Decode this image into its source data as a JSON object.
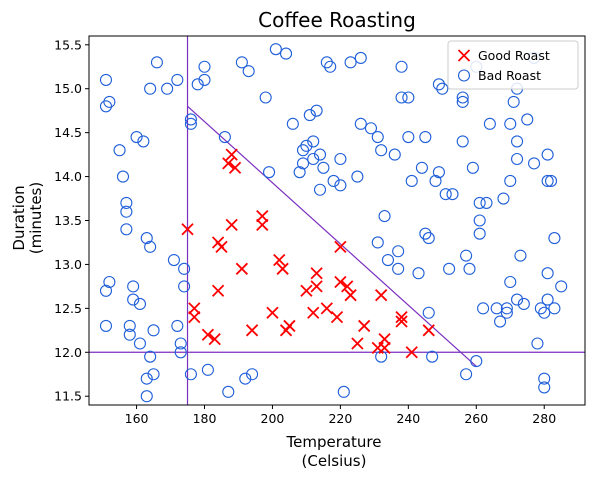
{
  "chart_data": {
    "type": "scatter",
    "title": "Coffee Roasting",
    "xlabel": [
      "Temperature",
      "(Celsius)"
    ],
    "ylabel": [
      "Duration",
      "(minutes)"
    ],
    "xlim": [
      146,
      292
    ],
    "ylim": [
      11.4,
      15.6
    ],
    "xticks": [
      160,
      180,
      200,
      220,
      240,
      260,
      280
    ],
    "yticks": [
      11.5,
      12.0,
      12.5,
      13.0,
      13.5,
      14.0,
      14.5,
      15.0,
      15.5
    ],
    "legend_position": "top-right",
    "grid": false,
    "colors": {
      "good": "#ff0000",
      "bad": "#1f5fd9",
      "lines": "#7b2fbf"
    },
    "decision_boundaries": [
      {
        "type": "vertical",
        "x": 175
      },
      {
        "type": "horizontal",
        "y": 12.0
      },
      {
        "type": "segment",
        "x1": 175,
        "y1": 14.8,
        "x2": 260,
        "y2": 11.84
      }
    ],
    "series": [
      {
        "name": "Good Roast",
        "marker": "x",
        "points": [
          [
            175,
            13.4
          ],
          [
            177,
            12.5
          ],
          [
            177,
            12.4
          ],
          [
            181,
            12.2
          ],
          [
            183,
            12.15
          ],
          [
            184,
            12.7
          ],
          [
            184,
            13.25
          ],
          [
            185,
            13.2
          ],
          [
            187,
            14.15
          ],
          [
            188,
            14.25
          ],
          [
            188,
            13.45
          ],
          [
            189,
            14.1
          ],
          [
            191,
            12.95
          ],
          [
            194,
            12.25
          ],
          [
            197,
            13.55
          ],
          [
            197,
            13.45
          ],
          [
            200,
            12.45
          ],
          [
            202,
            13.05
          ],
          [
            203,
            12.95
          ],
          [
            204,
            12.25
          ],
          [
            205,
            12.3
          ],
          [
            210,
            12.7
          ],
          [
            212,
            12.45
          ],
          [
            213,
            12.75
          ],
          [
            213,
            12.9
          ],
          [
            216,
            12.5
          ],
          [
            219,
            12.4
          ],
          [
            220,
            13.2
          ],
          [
            220,
            12.8
          ],
          [
            222,
            12.75
          ],
          [
            223,
            12.65
          ],
          [
            225,
            12.1
          ],
          [
            227,
            12.3
          ],
          [
            231,
            12.05
          ],
          [
            232,
            12.65
          ],
          [
            233,
            12.15
          ],
          [
            233,
            12.05
          ],
          [
            238,
            12.35
          ],
          [
            238,
            12.4
          ],
          [
            241,
            12.0
          ],
          [
            246,
            12.25
          ]
        ]
      },
      {
        "name": "Bad Roast",
        "marker": "o",
        "points": [
          [
            151,
            15.1
          ],
          [
            151,
            14.8
          ],
          [
            152,
            14.85
          ],
          [
            151,
            12.7
          ],
          [
            152,
            12.8
          ],
          [
            151,
            12.3
          ],
          [
            155,
            14.3
          ],
          [
            156,
            14.0
          ],
          [
            157,
            13.7
          ],
          [
            157,
            13.6
          ],
          [
            157,
            13.4
          ],
          [
            158,
            12.3
          ],
          [
            158,
            12.2
          ],
          [
            159,
            12.6
          ],
          [
            159,
            12.75
          ],
          [
            160,
            14.45
          ],
          [
            161,
            12.55
          ],
          [
            162,
            14.4
          ],
          [
            161,
            12.1
          ],
          [
            163,
            11.7
          ],
          [
            163,
            11.5
          ],
          [
            163,
            13.3
          ],
          [
            164,
            13.2
          ],
          [
            164,
            11.95
          ],
          [
            165,
            11.75
          ],
          [
            165,
            12.25
          ],
          [
            166,
            15.3
          ],
          [
            164,
            15.0
          ],
          [
            169,
            15.0
          ],
          [
            171,
            13.05
          ],
          [
            172,
            15.1
          ],
          [
            172,
            12.3
          ],
          [
            173,
            12.0
          ],
          [
            173,
            12.1
          ],
          [
            174,
            12.95
          ],
          [
            174,
            12.75
          ],
          [
            176,
            14.65
          ],
          [
            176,
            14.6
          ],
          [
            176,
            11.75
          ],
          [
            178,
            15.05
          ],
          [
            180,
            15.25
          ],
          [
            180,
            15.1
          ],
          [
            181,
            11.8
          ],
          [
            186,
            14.45
          ],
          [
            187,
            11.55
          ],
          [
            191,
            15.3
          ],
          [
            192,
            11.7
          ],
          [
            194,
            11.75
          ],
          [
            193,
            15.2
          ],
          [
            198,
            14.9
          ],
          [
            199,
            14.05
          ],
          [
            201,
            15.45
          ],
          [
            204,
            15.4
          ],
          [
            206,
            14.6
          ],
          [
            208,
            14.05
          ],
          [
            209,
            14.3
          ],
          [
            209,
            14.15
          ],
          [
            210,
            14.35
          ],
          [
            211,
            14.7
          ],
          [
            212,
            14.4
          ],
          [
            212,
            14.2
          ],
          [
            213,
            14.75
          ],
          [
            214,
            14.25
          ],
          [
            214,
            13.85
          ],
          [
            215,
            14.1
          ],
          [
            216,
            15.3
          ],
          [
            217,
            15.25
          ],
          [
            218,
            13.95
          ],
          [
            220,
            13.9
          ],
          [
            220,
            14.2
          ],
          [
            221,
            11.55
          ],
          [
            223,
            15.3
          ],
          [
            225,
            14.0
          ],
          [
            226,
            15.35
          ],
          [
            226,
            14.6
          ],
          [
            229,
            14.55
          ],
          [
            231,
            13.25
          ],
          [
            231,
            14.45
          ],
          [
            232,
            11.95
          ],
          [
            232,
            14.3
          ],
          [
            233,
            13.55
          ],
          [
            234,
            13.05
          ],
          [
            236,
            14.25
          ],
          [
            237,
            12.95
          ],
          [
            237,
            13.15
          ],
          [
            238,
            15.25
          ],
          [
            238,
            14.9
          ],
          [
            240,
            14.45
          ],
          [
            240,
            14.9
          ],
          [
            241,
            13.95
          ],
          [
            243,
            12.9
          ],
          [
            244,
            14.1
          ],
          [
            245,
            13.35
          ],
          [
            245,
            14.45
          ],
          [
            246,
            13.3
          ],
          [
            246,
            12.45
          ],
          [
            247,
            11.95
          ],
          [
            248,
            13.95
          ],
          [
            249,
            14.05
          ],
          [
            249,
            15.05
          ],
          [
            250,
            15.0
          ],
          [
            251,
            13.8
          ],
          [
            252,
            12.95
          ],
          [
            253,
            13.8
          ],
          [
            256,
            14.9
          ],
          [
            256,
            14.85
          ],
          [
            256,
            14.4
          ],
          [
            257,
            13.1
          ],
          [
            257,
            11.75
          ],
          [
            258,
            12.95
          ],
          [
            259,
            14.1
          ],
          [
            260,
            11.9
          ],
          [
            260,
            15.25
          ],
          [
            261,
            13.5
          ],
          [
            261,
            13.35
          ],
          [
            261,
            13.7
          ],
          [
            262,
            12.5
          ],
          [
            263,
            13.7
          ],
          [
            264,
            14.6
          ],
          [
            266,
            12.5
          ],
          [
            267,
            12.35
          ],
          [
            268,
            13.75
          ],
          [
            269,
            12.5
          ],
          [
            269,
            12.45
          ],
          [
            270,
            12.8
          ],
          [
            270,
            13.95
          ],
          [
            270,
            14.6
          ],
          [
            271,
            14.85
          ],
          [
            272,
            14.4
          ],
          [
            272,
            14.2
          ],
          [
            272,
            15.0
          ],
          [
            272,
            12.6
          ],
          [
            273,
            13.1
          ],
          [
            274,
            12.55
          ],
          [
            275,
            14.65
          ],
          [
            277,
            14.15
          ],
          [
            277,
            15.35
          ],
          [
            278,
            12.1
          ],
          [
            279,
            12.5
          ],
          [
            280,
            11.6
          ],
          [
            280,
            11.7
          ],
          [
            280,
            12.45
          ],
          [
            281,
            12.6
          ],
          [
            281,
            12.9
          ],
          [
            281,
            14.25
          ],
          [
            281,
            13.95
          ],
          [
            282,
            13.95
          ],
          [
            283,
            13.3
          ],
          [
            283,
            12.5
          ],
          [
            285,
            12.75
          ]
        ]
      }
    ]
  }
}
